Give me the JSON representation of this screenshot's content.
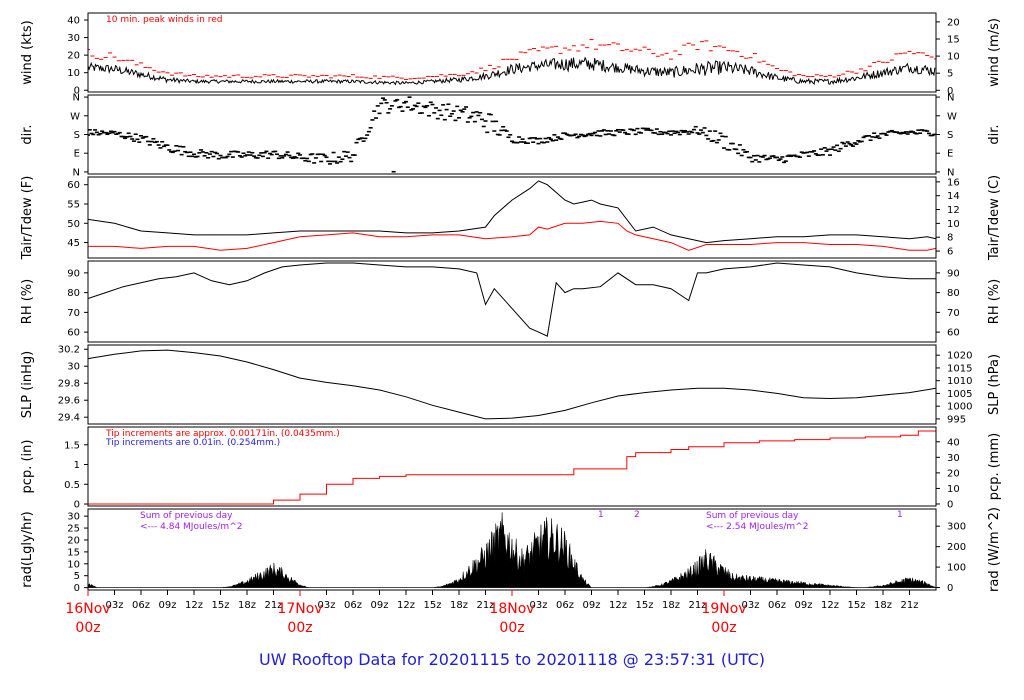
{
  "footer": {
    "title": "UW Rooftop Data for 20201115  to  20201118 @ 23:57:31  (UTC)"
  },
  "colors": {
    "axis": "#000000",
    "red": "#ff0000",
    "blue": "#1f1fd6",
    "purple": "#a020f0",
    "series": "#000000"
  },
  "chart_data": [
    {
      "id": "wind",
      "type": "line",
      "ylabel": "wind (kts)",
      "ylabel_right": "wind (m/s)",
      "ylim": [
        -1,
        44
      ],
      "yticks": [
        0,
        10,
        20,
        30,
        40
      ],
      "ylim_right": [
        -0.5,
        22.6
      ],
      "yticks_right": [
        0,
        5,
        10,
        15,
        20
      ],
      "annotations": [
        {
          "text": "10 min. peak winds in red",
          "color": "#ff0000"
        }
      ],
      "series": [
        {
          "style": "dense-noise-line",
          "color": "#000000",
          "x_hours": [
            0,
            3,
            6,
            9,
            12,
            15,
            18,
            24,
            30,
            36,
            39,
            42,
            45,
            48,
            51,
            54,
            57,
            60,
            63,
            66,
            69,
            72,
            75,
            78,
            81,
            84,
            87,
            90,
            93,
            96
          ],
          "y": [
            13,
            12,
            9,
            6,
            5,
            5,
            5,
            5,
            5,
            4,
            5,
            6,
            8,
            12,
            14,
            15,
            15,
            13,
            11,
            10,
            12,
            13,
            11,
            7,
            5,
            5,
            7,
            10,
            13,
            11
          ],
          "noise": [
            2.5,
            2.5,
            2,
            1.5,
            1,
            1,
            1,
            1,
            1,
            1,
            1,
            1.5,
            2,
            3,
            3,
            4,
            4,
            3,
            3,
            3,
            4,
            4,
            3,
            2,
            1.5,
            1.5,
            2,
            2.5,
            3,
            3
          ]
        },
        {
          "style": "peak-dashes",
          "color": "#ff0000",
          "x_hours": [
            0,
            3,
            6,
            9,
            12,
            15,
            18,
            24,
            30,
            36,
            39,
            42,
            45,
            48,
            51,
            54,
            57,
            60,
            63,
            66,
            69,
            72,
            75,
            78,
            81,
            84,
            87,
            90,
            93,
            96
          ],
          "y": [
            21,
            19,
            14,
            10,
            8,
            8,
            8,
            8,
            8,
            7,
            8,
            9,
            12,
            18,
            22,
            24,
            26,
            24,
            22,
            20,
            26,
            24,
            20,
            12,
            8,
            8,
            11,
            16,
            22,
            18
          ]
        }
      ]
    },
    {
      "id": "dir",
      "type": "scatter",
      "ylabel": "dir.",
      "ylabel_right": "dir.",
      "ylim": [
        -10,
        370
      ],
      "ytick_values": [
        0,
        90,
        180,
        270,
        360
      ],
      "ytick_labels": [
        "N",
        "E",
        "S",
        "W",
        "N"
      ],
      "series": [
        {
          "style": "scatter-dashes",
          "color": "#000000",
          "x_hours": [
            0,
            3,
            6,
            9,
            12,
            15,
            18,
            21,
            24,
            27,
            30,
            33,
            36,
            39,
            42,
            45,
            48,
            51,
            54,
            57,
            60,
            63,
            66,
            69,
            72,
            75,
            78,
            81,
            84,
            87,
            90,
            93,
            96
          ],
          "y": [
            190,
            185,
            160,
            120,
            90,
            80,
            80,
            85,
            70,
            60,
            80,
            320,
            330,
            300,
            280,
            250,
            160,
            150,
            175,
            185,
            190,
            195,
            190,
            200,
            150,
            70,
            60,
            80,
            100,
            150,
            180,
            190,
            190
          ],
          "noise": [
            15,
            15,
            20,
            25,
            20,
            20,
            20,
            20,
            20,
            30,
            30,
            40,
            40,
            40,
            40,
            60,
            20,
            15,
            15,
            15,
            15,
            15,
            15,
            20,
            40,
            20,
            20,
            20,
            20,
            20,
            15,
            15,
            15
          ]
        }
      ]
    },
    {
      "id": "temp",
      "type": "line",
      "ylabel": "Tair/Tdew (F)",
      "ylabel_right": "Tair/Tdew (C)",
      "ylim": [
        41,
        62
      ],
      "yticks": [
        45,
        50,
        55,
        60
      ],
      "ylim_right": [
        5,
        16.7
      ],
      "yticks_right": [
        6,
        8,
        10,
        12,
        14,
        16
      ],
      "series": [
        {
          "name": "Tair",
          "style": "line",
          "color": "#000000",
          "x_hours": [
            0,
            3,
            6,
            9,
            12,
            15,
            18,
            21,
            24,
            27,
            30,
            33,
            36,
            39,
            42,
            45,
            46,
            48,
            50,
            51,
            52,
            54,
            55,
            56,
            57,
            58,
            60,
            62,
            64,
            66,
            68,
            70,
            72,
            75,
            78,
            81,
            84,
            87,
            90,
            93,
            95,
            96
          ],
          "y": [
            51,
            50,
            48,
            47.5,
            47,
            47,
            47,
            47.5,
            48,
            48,
            48,
            48,
            47.5,
            47.5,
            48,
            49,
            52,
            56,
            59,
            61,
            60,
            56,
            55,
            55.5,
            56,
            55,
            54,
            48,
            49,
            47,
            46,
            45,
            45.5,
            46,
            46.5,
            46.5,
            47,
            47,
            46.5,
            46,
            46.5,
            46
          ]
        },
        {
          "name": "Tdew",
          "style": "line",
          "color": "#ff0000",
          "x_hours": [
            0,
            3,
            6,
            9,
            12,
            15,
            18,
            21,
            24,
            27,
            30,
            33,
            36,
            39,
            42,
            45,
            48,
            50,
            51,
            52,
            54,
            56,
            58,
            60,
            61,
            62,
            64,
            66,
            68,
            70,
            72,
            75,
            78,
            81,
            84,
            87,
            90,
            93,
            95,
            96
          ],
          "y": [
            44,
            44,
            43.5,
            44,
            44,
            43,
            43.5,
            45,
            46.5,
            47,
            47.5,
            46.5,
            46.5,
            47,
            47,
            46,
            46.5,
            47,
            49,
            48.5,
            50,
            50,
            50.5,
            50,
            48,
            47,
            46,
            45,
            43,
            44.5,
            44.5,
            44.5,
            45,
            45,
            44.5,
            44.5,
            44,
            43,
            43,
            43.5
          ]
        }
      ]
    },
    {
      "id": "rh",
      "type": "line",
      "ylabel": "RH (%)",
      "ylabel_right": "RH (%)",
      "ylim": [
        55,
        96
      ],
      "yticks": [
        60,
        70,
        80,
        90
      ],
      "series": [
        {
          "style": "line",
          "color": "#000000",
          "x_hours": [
            0,
            2,
            4,
            6,
            8,
            10,
            12,
            14,
            16,
            18,
            20,
            22,
            24,
            27,
            30,
            33,
            36,
            39,
            42,
            44,
            45,
            46,
            48,
            50,
            51,
            52,
            53,
            54,
            55,
            56,
            58,
            60,
            62,
            64,
            66,
            68,
            69,
            70,
            72,
            75,
            78,
            81,
            84,
            87,
            90,
            93,
            96
          ],
          "y": [
            77,
            80,
            83,
            85,
            87,
            88,
            90,
            86,
            84,
            86,
            90,
            93,
            94,
            95,
            95,
            94,
            93,
            93,
            92,
            90,
            74,
            82,
            72,
            62,
            60,
            58,
            85,
            80,
            82,
            82,
            83,
            90,
            84,
            84,
            82,
            76,
            90,
            90,
            92,
            93,
            95,
            94,
            93,
            90,
            88,
            87,
            87
          ]
        }
      ]
    },
    {
      "id": "slp",
      "type": "line",
      "ylabel": "SLP (inHg)",
      "ylabel_right": "SLP (hPa)",
      "ylim": [
        29.32,
        30.25
      ],
      "yticks": [
        29.4,
        29.6,
        29.8,
        30.0,
        30.2
      ],
      "ylim_right": [
        993,
        1024
      ],
      "yticks_right": [
        995,
        1000,
        1005,
        1010,
        1015,
        1020
      ],
      "series": [
        {
          "style": "line",
          "color": "#000000",
          "x_hours": [
            0,
            3,
            6,
            9,
            12,
            15,
            18,
            21,
            24,
            27,
            30,
            33,
            36,
            39,
            42,
            45,
            48,
            51,
            54,
            57,
            60,
            63,
            66,
            69,
            72,
            75,
            78,
            81,
            84,
            87,
            90,
            93,
            96
          ],
          "y": [
            30.09,
            30.14,
            30.18,
            30.19,
            30.16,
            30.12,
            30.05,
            29.96,
            29.86,
            29.81,
            29.77,
            29.72,
            29.64,
            29.54,
            29.46,
            29.38,
            29.39,
            29.42,
            29.48,
            29.57,
            29.65,
            29.69,
            29.72,
            29.74,
            29.74,
            29.72,
            29.68,
            29.63,
            29.62,
            29.63,
            29.66,
            29.69,
            29.74
          ]
        }
      ]
    },
    {
      "id": "pcp",
      "type": "line",
      "ylabel": "pcp. (in)",
      "ylabel_right": "pcp. (mm)",
      "ylim": [
        -0.05,
        1.95
      ],
      "yticks": [
        0.0,
        0.5,
        1.0,
        1.5
      ],
      "ylim_right": [
        -1.3,
        49.5
      ],
      "yticks_right": [
        0,
        10,
        20,
        30,
        40
      ],
      "annotations": [
        {
          "text": "Tip increments are approx. 0.00171in. (0.0435mm.)",
          "color": "#ff0000"
        },
        {
          "text": "Tip increments are 0.01in. (0.254mm.)",
          "color": "#1f1fd6"
        }
      ],
      "series": [
        {
          "style": "step",
          "color": "#ff0000",
          "x_hours": [
            0,
            18,
            21,
            24,
            27,
            30,
            33,
            36,
            39,
            42,
            45,
            48,
            51,
            55,
            58,
            60,
            61,
            62,
            64,
            66,
            68,
            72,
            76,
            80,
            84,
            88,
            92,
            94,
            96
          ],
          "y": [
            0,
            0,
            0.1,
            0.25,
            0.5,
            0.65,
            0.7,
            0.74,
            0.74,
            0.74,
            0.74,
            0.74,
            0.74,
            0.89,
            0.89,
            0.89,
            1.2,
            1.3,
            1.3,
            1.38,
            1.45,
            1.55,
            1.6,
            1.63,
            1.67,
            1.7,
            1.74,
            1.85,
            1.86
          ]
        }
      ]
    },
    {
      "id": "rad",
      "type": "area",
      "ylabel": "rad(Lgly/hr)",
      "ylabel_right": "rad (W/m^2)",
      "ylim": [
        -1,
        33
      ],
      "yticks": [
        0,
        5,
        10,
        15,
        20,
        25,
        30
      ],
      "ylim_right": [
        -12,
        384
      ],
      "yticks_right": [
        0,
        100,
        200,
        300
      ],
      "annotations": [
        {
          "text": "Sum of previous day",
          "color": "#a020f0"
        },
        {
          "text": "<--- 4.84 MJoules/m^2",
          "color": "#a020f0"
        },
        {
          "text": "Sum of previous day",
          "color": "#a020f0"
        },
        {
          "text": "<--- 2.54 MJoules/m^2",
          "color": "#a020f0"
        },
        {
          "text": "1",
          "color": "#a020f0"
        },
        {
          "text": "2",
          "color": "#a020f0"
        },
        {
          "text": "1",
          "color": "#a020f0"
        }
      ],
      "series": [
        {
          "style": "filled-noise",
          "color": "#000000",
          "x_hours": [
            0,
            0.6,
            1,
            15,
            16,
            17,
            18,
            19,
            20,
            21,
            22,
            23,
            24,
            25,
            39,
            40,
            41,
            42,
            43,
            44,
            45,
            46,
            47,
            48,
            49,
            50,
            51,
            52,
            53,
            54,
            55,
            56,
            57,
            63,
            64,
            65,
            66,
            67,
            68,
            69,
            70,
            71,
            72,
            73,
            87,
            88,
            89,
            90,
            91,
            92,
            93,
            94,
            95,
            96
          ],
          "y": [
            2,
            1,
            0,
            0,
            0.5,
            1.5,
            3,
            5,
            7,
            9,
            7,
            4,
            1.5,
            0,
            0,
            0.5,
            2,
            4,
            8,
            12,
            16,
            22,
            27,
            20,
            14,
            16,
            22,
            25,
            24,
            20,
            12,
            4,
            0,
            0,
            0.5,
            1.5,
            3,
            5,
            7,
            10,
            14,
            11,
            8,
            5,
            0,
            0,
            0.5,
            1,
            2,
            3,
            4,
            3,
            2,
            0
          ]
        }
      ]
    }
  ],
  "x_axis": {
    "range_hours": [
      0,
      96
    ],
    "ticks": [
      {
        "h": 3,
        "label": "03z"
      },
      {
        "h": 6,
        "label": "06z"
      },
      {
        "h": 9,
        "label": "09z"
      },
      {
        "h": 12,
        "label": "12z"
      },
      {
        "h": 15,
        "label": "15z"
      },
      {
        "h": 18,
        "label": "18z"
      },
      {
        "h": 21,
        "label": "21z"
      },
      {
        "h": 27,
        "label": "03z"
      },
      {
        "h": 30,
        "label": "06z"
      },
      {
        "h": 33,
        "label": "09z"
      },
      {
        "h": 36,
        "label": "12z"
      },
      {
        "h": 39,
        "label": "15z"
      },
      {
        "h": 42,
        "label": "18z"
      },
      {
        "h": 45,
        "label": "21z"
      },
      {
        "h": 51,
        "label": "03z"
      },
      {
        "h": 54,
        "label": "06z"
      },
      {
        "h": 57,
        "label": "09z"
      },
      {
        "h": 60,
        "label": "12z"
      },
      {
        "h": 63,
        "label": "15z"
      },
      {
        "h": 66,
        "label": "18z"
      },
      {
        "h": 69,
        "label": "21z"
      },
      {
        "h": 75,
        "label": "03z"
      },
      {
        "h": 78,
        "label": "06z"
      },
      {
        "h": 81,
        "label": "09z"
      },
      {
        "h": 84,
        "label": "12z"
      },
      {
        "h": 87,
        "label": "15z"
      },
      {
        "h": 90,
        "label": "18z"
      },
      {
        "h": 93,
        "label": "21z"
      }
    ],
    "day_ticks": [
      {
        "h": 0,
        "date": "16Nov",
        "time": "00z"
      },
      {
        "h": 24,
        "date": "17Nov",
        "time": "00z"
      },
      {
        "h": 48,
        "date": "18Nov",
        "time": "00z"
      },
      {
        "h": 72,
        "date": "19Nov",
        "time": "00z"
      }
    ]
  }
}
